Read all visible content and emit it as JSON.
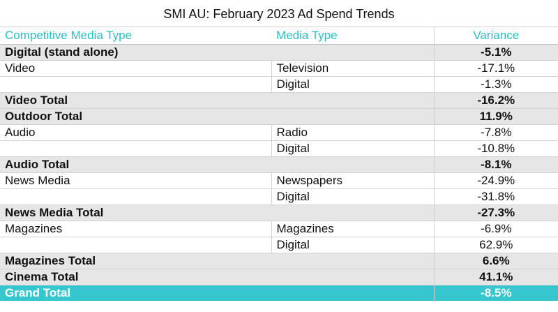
{
  "title": "SMI AU: February 2023 Ad Spend Trends",
  "headers": {
    "competitive_media_type": "Competitive Media Type",
    "media_type": "Media Type",
    "variance": "Variance"
  },
  "rows": [
    {
      "type": "total",
      "label": "Digital (stand alone)",
      "variance": "-5.1%"
    },
    {
      "type": "detail",
      "label": "Video",
      "media": "Television",
      "variance": "-17.1%"
    },
    {
      "type": "detail",
      "label": "",
      "media": "Digital",
      "variance": "-1.3%"
    },
    {
      "type": "total",
      "label": "Video Total",
      "variance": "-16.2%"
    },
    {
      "type": "total",
      "label": "Outdoor Total",
      "variance": "11.9%"
    },
    {
      "type": "detail",
      "label": "Audio",
      "media": "Radio",
      "variance": "-7.8%"
    },
    {
      "type": "detail",
      "label": "",
      "media": "Digital",
      "variance": "-10.8%"
    },
    {
      "type": "total",
      "label": "Audio Total",
      "variance": "-8.1%"
    },
    {
      "type": "detail",
      "label": "News Media",
      "media": "Newspapers",
      "variance": "-24.9%"
    },
    {
      "type": "detail",
      "label": "",
      "media": "Digital",
      "variance": "-31.8%"
    },
    {
      "type": "total",
      "label": "News Media Total",
      "variance": "-27.3%"
    },
    {
      "type": "detail",
      "label": "Magazines",
      "media": "Magazines",
      "variance": "-6.9%"
    },
    {
      "type": "detail",
      "label": "",
      "media": "Digital",
      "variance": "62.9%"
    },
    {
      "type": "total",
      "label": "Magazines Total",
      "variance": "6.6%"
    },
    {
      "type": "total",
      "label": "Cinema Total",
      "variance": "41.1%"
    },
    {
      "type": "grand",
      "label": "Grand Total",
      "variance": "-8.5%"
    }
  ],
  "colors": {
    "accent": "#2bbfc4",
    "grand_total_bg": "#36c6cd",
    "total_row_bg": "#e6e6e6"
  }
}
